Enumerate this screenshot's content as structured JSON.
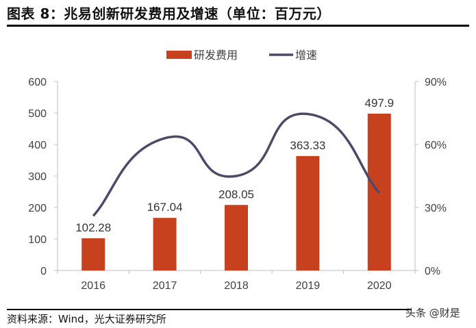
{
  "title": "图表 8：兆易创新研发费用及增速（单位：百万元）",
  "source": "资料来源：Wind，光大证券研究所",
  "watermark": "头条 @财是",
  "chart_data": {
    "type": "bar+line",
    "categories": [
      "2016",
      "2017",
      "2018",
      "2019",
      "2020"
    ],
    "series": [
      {
        "name": "研发费用",
        "type": "bar",
        "axis": "left",
        "color": "#C8411F",
        "values": [
          102.28,
          167.04,
          208.05,
          363.33,
          497.9
        ],
        "labels": [
          "102.28",
          "167.04",
          "208.05",
          "363.33",
          "497.9"
        ]
      },
      {
        "name": "增速",
        "type": "line",
        "axis": "right",
        "color": "#4B4A6B",
        "smooth": true,
        "values": [
          26,
          63,
          45,
          74.5,
          37
        ]
      }
    ],
    "left_axis": {
      "ylim": [
        0,
        600
      ],
      "ticks": [
        "0",
        "100",
        "200",
        "300",
        "400",
        "500",
        "600"
      ]
    },
    "right_axis": {
      "ylim": [
        0,
        90
      ],
      "ticks": [
        "0%",
        "30%",
        "60%",
        "90%"
      ]
    },
    "legend": "top-center",
    "grid": false
  }
}
